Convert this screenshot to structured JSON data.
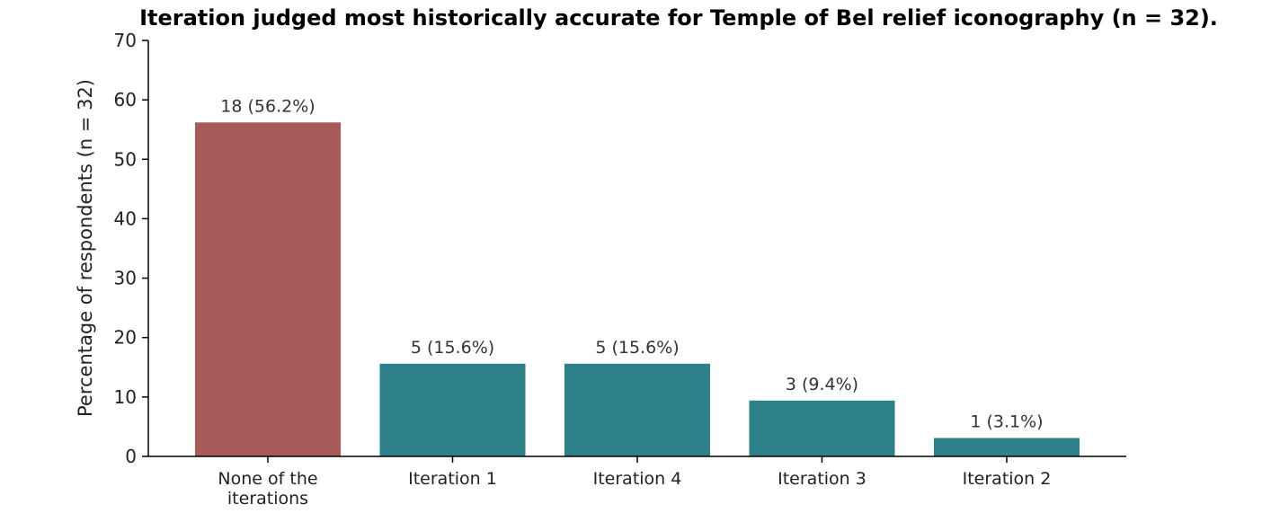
{
  "chart_data": {
    "type": "bar",
    "title": "Iteration judged most historically accurate for Temple of Bel relief iconography (n = 32).",
    "xlabel": "",
    "ylabel": "Percentage of respondents (n = 32)",
    "categories": [
      [
        "None of the",
        "iterations"
      ],
      [
        "Iteration 1"
      ],
      [
        "Iteration 4"
      ],
      [
        "Iteration 3"
      ],
      [
        "Iteration 2"
      ]
    ],
    "values": [
      56.2,
      15.6,
      15.6,
      9.4,
      3.1
    ],
    "data_labels": [
      "18 (56.2%)",
      "5 (15.6%)",
      "5 (15.6%)",
      "3 (9.4%)",
      "1 (3.1%)"
    ],
    "bar_colors": [
      "#a85a5a",
      "#2e818a",
      "#2e818a",
      "#2e818a",
      "#2e818a"
    ],
    "ylim": [
      0,
      70
    ],
    "yticks": [
      0,
      10,
      20,
      30,
      40,
      50,
      60,
      70
    ],
    "grid": false,
    "legend": "none"
  }
}
